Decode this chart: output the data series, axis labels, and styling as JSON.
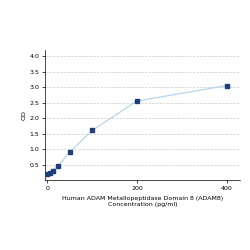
{
  "x": [
    0,
    6.25,
    12.5,
    25,
    50,
    100,
    200,
    400
  ],
  "y": [
    0.2,
    0.24,
    0.3,
    0.46,
    0.9,
    1.6,
    2.55,
    3.05
  ],
  "line_color": "#b8d4ea",
  "marker_color": "#1f3d7a",
  "marker_size": 3.5,
  "xlabel_line1": "Human ADAM Metallopeptidase Domain 8 (ADAM8)",
  "xlabel_line2": "Concentration (pg/ml)",
  "ylabel": "OD",
  "xlim": [
    -5,
    430
  ],
  "ylim": [
    0,
    4.2
  ],
  "xticks": [
    0,
    200,
    400
  ],
  "yticks": [
    0.5,
    1.0,
    1.5,
    2.0,
    2.5,
    3.0,
    3.5,
    4.0
  ],
  "grid_color": "#cccccc",
  "bg_color": "#ffffff",
  "label_fontsize": 4.5,
  "tick_fontsize": 4.5,
  "linewidth": 0.9
}
